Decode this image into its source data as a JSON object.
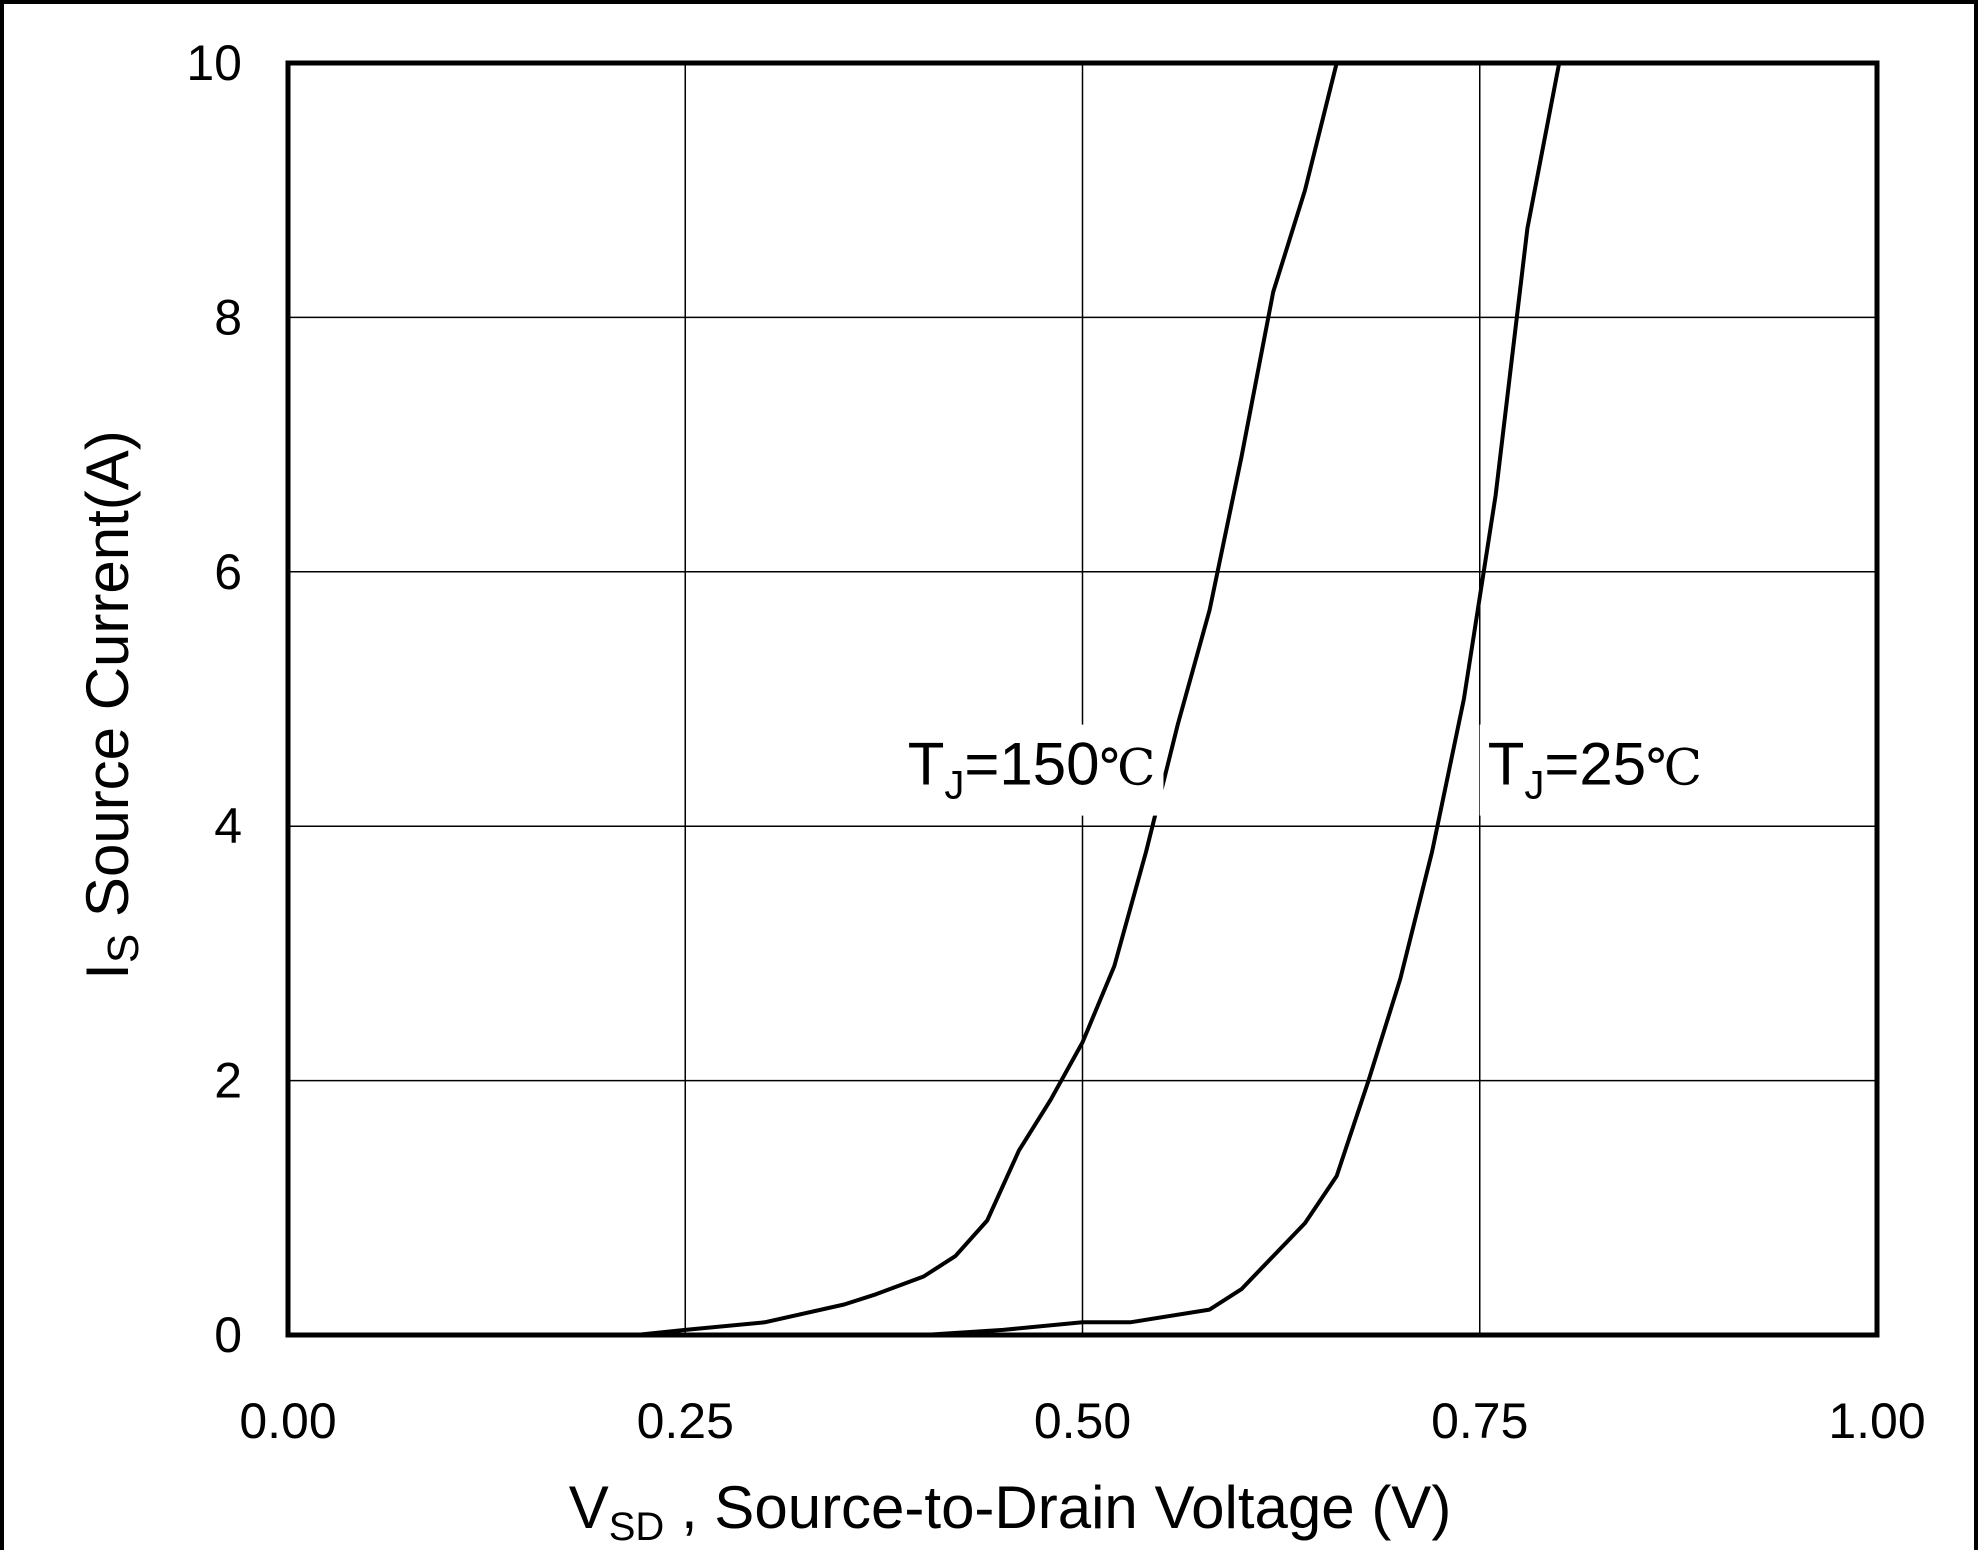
{
  "chart_data": {
    "type": "line",
    "title": "",
    "xlabel": {
      "main": "V",
      "sub": "SD",
      "rest": " , Source-to-Drain Voltage (V)"
    },
    "ylabel": {
      "main": "I",
      "sub": "S",
      "rest": " Source Current(A)"
    },
    "xlim": [
      0.0,
      1.0
    ],
    "ylim": [
      0,
      10
    ],
    "grid": true,
    "xticks": [
      {
        "value": 0.0,
        "label": "0.00"
      },
      {
        "value": 0.25,
        "label": "0.25"
      },
      {
        "value": 0.5,
        "label": "0.50"
      },
      {
        "value": 0.75,
        "label": "0.75"
      },
      {
        "value": 1.0,
        "label": "1.00"
      }
    ],
    "yticks": [
      {
        "value": 0,
        "label": "0"
      },
      {
        "value": 2,
        "label": "2"
      },
      {
        "value": 4,
        "label": "4"
      },
      {
        "value": 6,
        "label": "6"
      },
      {
        "value": 8,
        "label": "8"
      },
      {
        "value": 10,
        "label": "10"
      }
    ],
    "series": [
      {
        "name": "TJ=150°C",
        "color": "#000000",
        "x": [
          0.219,
          0.25,
          0.3,
          0.35,
          0.37,
          0.4,
          0.42,
          0.44,
          0.46,
          0.48,
          0.5,
          0.52,
          0.54,
          0.56,
          0.58,
          0.6,
          0.62,
          0.64,
          0.66
        ],
        "y": [
          0.0,
          0.04,
          0.1,
          0.24,
          0.32,
          0.46,
          0.62,
          0.9,
          1.45,
          1.85,
          2.3,
          2.9,
          3.8,
          4.8,
          5.7,
          6.9,
          8.2,
          9.0,
          10.0
        ]
      },
      {
        "name": "TJ=25°C",
        "color": "#000000",
        "x": [
          0.4,
          0.45,
          0.5,
          0.53,
          0.58,
          0.6,
          0.64,
          0.66,
          0.68,
          0.7,
          0.72,
          0.74,
          0.76,
          0.78,
          0.8
        ],
        "y": [
          0.0,
          0.04,
          0.1,
          0.1,
          0.2,
          0.36,
          0.88,
          1.25,
          2.0,
          2.8,
          3.8,
          5.0,
          6.6,
          8.7,
          10.0
        ]
      }
    ],
    "annotations": [
      {
        "series": "TJ=150°C",
        "main": "T",
        "sub": "J",
        "value": "=150",
        "unit": "℃",
        "at": [
          0.39,
          4.5
        ]
      },
      {
        "series": "TJ=25°C",
        "main": "T",
        "sub": "J",
        "value": "=25",
        "unit": "℃",
        "at": [
          0.755,
          4.5
        ]
      }
    ]
  }
}
